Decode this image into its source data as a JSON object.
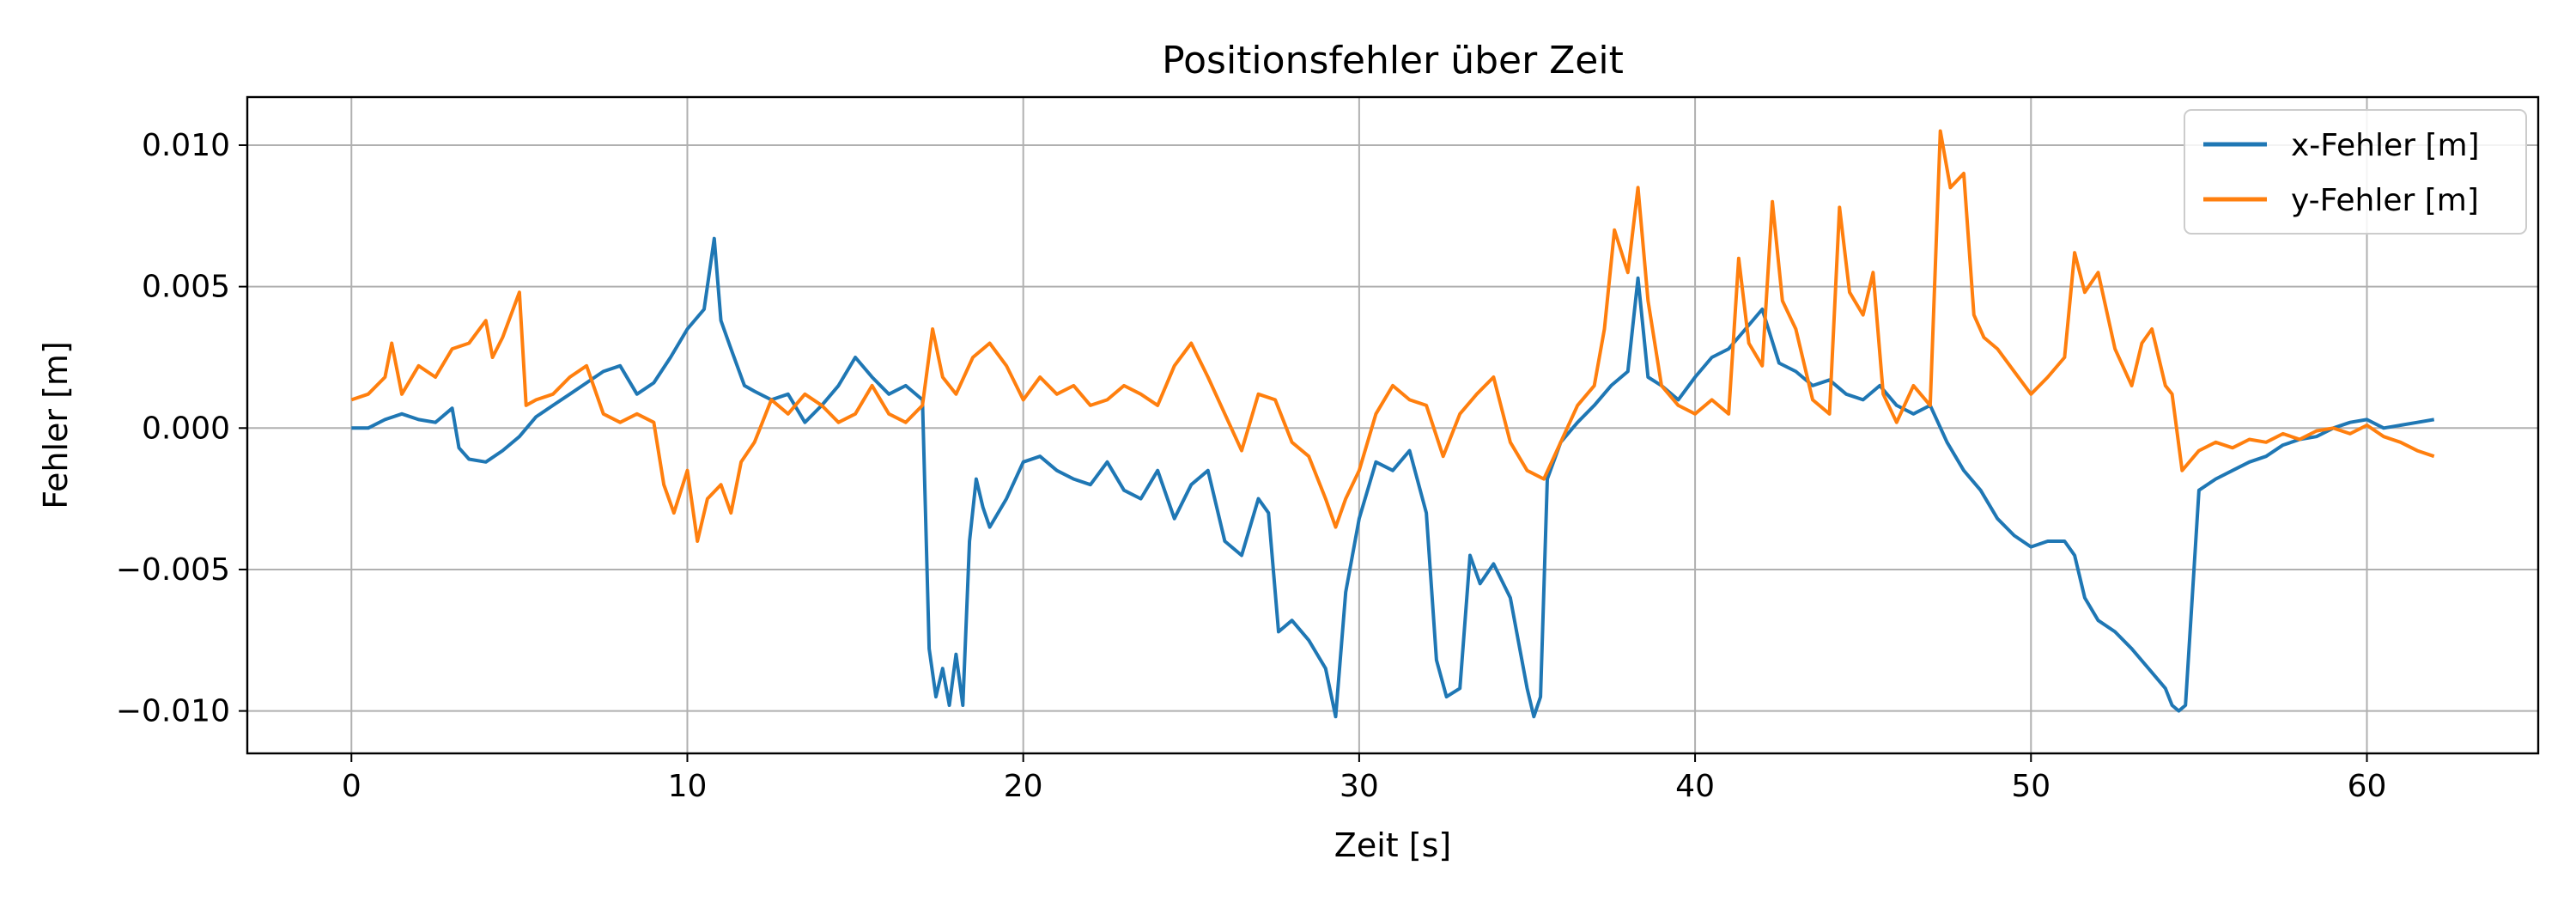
{
  "chart_data": {
    "type": "line",
    "title": "Positionsfehler über Zeit",
    "xlabel": "Zeit [s]",
    "ylabel": "Fehler [m]",
    "xlim": [
      -3.1,
      65.1
    ],
    "ylim": [
      -0.0115,
      0.0117
    ],
    "xticks": [
      0,
      10,
      20,
      30,
      40,
      50,
      60
    ],
    "xtick_labels": [
      "0",
      "10",
      "20",
      "30",
      "40",
      "50",
      "60"
    ],
    "yticks": [
      -0.01,
      -0.005,
      0.0,
      0.005,
      0.01
    ],
    "ytick_labels": [
      "−0.010",
      "−0.005",
      "0.000",
      "0.005",
      "0.010"
    ],
    "grid": true,
    "legend_position": "top-right",
    "series": [
      {
        "name": "x-Fehler [m]",
        "color": "#1f77b4",
        "x": [
          0,
          0.5,
          1,
          1.5,
          2,
          2.5,
          3,
          3.2,
          3.5,
          4,
          4.5,
          5,
          5.5,
          6,
          6.5,
          7,
          7.5,
          8,
          8.5,
          9,
          9.5,
          10,
          10.5,
          10.8,
          11,
          11.3,
          11.7,
          12,
          12.5,
          13,
          13.5,
          14,
          14.5,
          15,
          15.5,
          16,
          16.5,
          17,
          17.2,
          17.4,
          17.6,
          17.8,
          18,
          18.2,
          18.4,
          18.6,
          18.8,
          19,
          19.5,
          20,
          20.5,
          21,
          21.5,
          22,
          22.5,
          23,
          23.5,
          24,
          24.5,
          25,
          25.5,
          26,
          26.5,
          27,
          27.3,
          27.6,
          28,
          28.5,
          29,
          29.3,
          29.6,
          30,
          30.5,
          31,
          31.5,
          32,
          32.3,
          32.6,
          33,
          33.3,
          33.6,
          34,
          34.5,
          35,
          35.2,
          35.4,
          35.6,
          36,
          36.5,
          37,
          37.5,
          38,
          38.3,
          38.6,
          39,
          39.5,
          40,
          40.5,
          41,
          41.5,
          42,
          42.5,
          43,
          43.5,
          44,
          44.5,
          45,
          45.5,
          46,
          46.5,
          47,
          47.5,
          48,
          48.5,
          49,
          49.5,
          50,
          50.5,
          51,
          51.3,
          51.6,
          52,
          52.5,
          53,
          53.5,
          54,
          54.2,
          54.4,
          54.6,
          55,
          55.5,
          56,
          56.5,
          57,
          57.5,
          58,
          58.5,
          59,
          59.5,
          60,
          60.5,
          61,
          61.5,
          62
        ],
        "y": [
          0,
          0,
          0.0003,
          0.0005,
          0.0003,
          0.0002,
          0.0007,
          -0.0007,
          -0.0011,
          -0.0012,
          -0.0008,
          -0.0003,
          0.0004,
          0.0008,
          0.0012,
          0.0016,
          0.002,
          0.0022,
          0.0012,
          0.0016,
          0.0025,
          0.0035,
          0.0042,
          0.0067,
          0.0038,
          0.0028,
          0.0015,
          0.0013,
          0.001,
          0.0012,
          0.0002,
          0.0008,
          0.0015,
          0.0025,
          0.0018,
          0.0012,
          0.0015,
          0.001,
          -0.0078,
          -0.0095,
          -0.0085,
          -0.0098,
          -0.008,
          -0.0098,
          -0.004,
          -0.0018,
          -0.0028,
          -0.0035,
          -0.0025,
          -0.0012,
          -0.001,
          -0.0015,
          -0.0018,
          -0.002,
          -0.0012,
          -0.0022,
          -0.0025,
          -0.0015,
          -0.0032,
          -0.002,
          -0.0015,
          -0.004,
          -0.0045,
          -0.0025,
          -0.003,
          -0.0072,
          -0.0068,
          -0.0075,
          -0.0085,
          -0.0102,
          -0.0058,
          -0.0032,
          -0.0012,
          -0.0015,
          -0.0008,
          -0.003,
          -0.0082,
          -0.0095,
          -0.0092,
          -0.0045,
          -0.0055,
          -0.0048,
          -0.006,
          -0.0092,
          -0.0102,
          -0.0095,
          -0.0018,
          -0.0005,
          0.0002,
          0.0008,
          0.0015,
          0.002,
          0.0053,
          0.0018,
          0.0015,
          0.001,
          0.0018,
          0.0025,
          0.0028,
          0.0035,
          0.0042,
          0.0023,
          0.002,
          0.0015,
          0.0017,
          0.0012,
          0.001,
          0.0015,
          0.0008,
          0.0005,
          0.0008,
          -0.0005,
          -0.0015,
          -0.0022,
          -0.0032,
          -0.0038,
          -0.0042,
          -0.004,
          -0.004,
          -0.0045,
          -0.006,
          -0.0068,
          -0.0072,
          -0.0078,
          -0.0085,
          -0.0092,
          -0.0098,
          -0.01,
          -0.0098,
          -0.0022,
          -0.0018,
          -0.0015,
          -0.0012,
          -0.001,
          -0.0006,
          -0.0004,
          -0.0003,
          0,
          0.0002,
          0.0003,
          0,
          0.0001,
          0.0002,
          0.0003
        ]
      },
      {
        "name": "y-Fehler [m]",
        "color": "#ff7f0e",
        "x": [
          0,
          0.5,
          1,
          1.2,
          1.5,
          2,
          2.5,
          3,
          3.5,
          4,
          4.2,
          4.5,
          5,
          5.2,
          5.5,
          6,
          6.5,
          7,
          7.5,
          8,
          8.5,
          9,
          9.3,
          9.6,
          10,
          10.3,
          10.6,
          11,
          11.3,
          11.6,
          12,
          12.5,
          13,
          13.5,
          14,
          14.5,
          15,
          15.5,
          16,
          16.5,
          17,
          17.3,
          17.6,
          18,
          18.5,
          19,
          19.5,
          20,
          20.5,
          21,
          21.5,
          22,
          22.5,
          23,
          23.5,
          24,
          24.5,
          25,
          25.5,
          26,
          26.5,
          27,
          27.5,
          28,
          28.5,
          29,
          29.3,
          29.6,
          30,
          30.5,
          31,
          31.5,
          32,
          32.5,
          33,
          33.5,
          34,
          34.5,
          35,
          35.5,
          36,
          36.5,
          37,
          37.3,
          37.6,
          38,
          38.3,
          38.6,
          39,
          39.5,
          40,
          40.5,
          41,
          41.3,
          41.6,
          42,
          42.3,
          42.6,
          43,
          43.5,
          44,
          44.3,
          44.6,
          45,
          45.3,
          45.6,
          46,
          46.5,
          47,
          47.3,
          47.6,
          48,
          48.3,
          48.6,
          49,
          49.5,
          50,
          50.5,
          51,
          51.3,
          51.6,
          52,
          52.5,
          53,
          53.3,
          53.6,
          54,
          54.2,
          54.5,
          55,
          55.5,
          56,
          56.5,
          57,
          57.5,
          58,
          58.5,
          59,
          59.5,
          60,
          60.5,
          61,
          61.5,
          62
        ],
        "y": [
          0.001,
          0.0012,
          0.0018,
          0.003,
          0.0012,
          0.0022,
          0.0018,
          0.0028,
          0.003,
          0.0038,
          0.0025,
          0.0032,
          0.0048,
          0.0008,
          0.001,
          0.0012,
          0.0018,
          0.0022,
          0.0005,
          0.0002,
          0.0005,
          0.0002,
          -0.002,
          -0.003,
          -0.0015,
          -0.004,
          -0.0025,
          -0.002,
          -0.003,
          -0.0012,
          -0.0005,
          0.001,
          0.0005,
          0.0012,
          0.0008,
          0.0002,
          0.0005,
          0.0015,
          0.0005,
          0.0002,
          0.0008,
          0.0035,
          0.0018,
          0.0012,
          0.0025,
          0.003,
          0.0022,
          0.001,
          0.0018,
          0.0012,
          0.0015,
          0.0008,
          0.001,
          0.0015,
          0.0012,
          0.0008,
          0.0022,
          0.003,
          0.0018,
          0.0005,
          -0.0008,
          0.0012,
          0.001,
          -0.0005,
          -0.001,
          -0.0025,
          -0.0035,
          -0.0025,
          -0.0015,
          0.0005,
          0.0015,
          0.001,
          0.0008,
          -0.001,
          0.0005,
          0.0012,
          0.0018,
          -0.0005,
          -0.0015,
          -0.0018,
          -0.0005,
          0.0008,
          0.0015,
          0.0035,
          0.007,
          0.0055,
          0.0085,
          0.0045,
          0.0015,
          0.0008,
          0.0005,
          0.001,
          0.0005,
          0.006,
          0.003,
          0.0022,
          0.008,
          0.0045,
          0.0035,
          0.001,
          0.0005,
          0.0078,
          0.0048,
          0.004,
          0.0055,
          0.0012,
          0.0002,
          0.0015,
          0.0008,
          0.0105,
          0.0085,
          0.009,
          0.004,
          0.0032,
          0.0028,
          0.002,
          0.0012,
          0.0018,
          0.0025,
          0.0062,
          0.0048,
          0.0055,
          0.0028,
          0.0015,
          0.003,
          0.0035,
          0.0015,
          0.0012,
          -0.0015,
          -0.0008,
          -0.0005,
          -0.0007,
          -0.0004,
          -0.0005,
          -0.0002,
          -0.0004,
          -0.0001,
          0,
          -0.0002,
          0.0001,
          -0.0003,
          -0.0005,
          -0.0008,
          -0.001
        ]
      }
    ]
  }
}
